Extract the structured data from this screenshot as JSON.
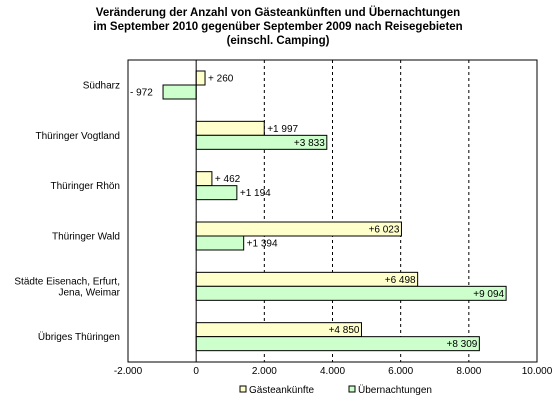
{
  "chart_data": {
    "type": "bar",
    "orientation": "horizontal",
    "title_lines": [
      "Veränderung der Anzahl von Gästeankünften  und Übernachtungen",
      "im September 2010 gegenüber September 2009 nach Reisegebieten",
      "(einschl. Camping)"
    ],
    "categories": [
      [
        "Südharz"
      ],
      [
        "Thüringer Vogtland"
      ],
      [
        "Thüringer Rhön"
      ],
      [
        "Thüringer Wald"
      ],
      [
        "Städte Eisenach, Erfurt,",
        "Jena, Weimar"
      ],
      [
        "Übriges Thüringen"
      ]
    ],
    "series": [
      {
        "name": "Gästeankünfte",
        "color": "#FFFFCC",
        "values": [
          260,
          1997,
          462,
          6023,
          6498,
          4850
        ],
        "labels": [
          "+ 260",
          "+1 997",
          "+ 462",
          "+6 023",
          "+6 498",
          "+4 850"
        ]
      },
      {
        "name": "Übernachtungen",
        "color": "#CCFFCC",
        "values": [
          -972,
          3833,
          1194,
          1394,
          9094,
          8309
        ],
        "labels": [
          "- 972",
          "+3 833",
          "+1 194",
          "+1 394",
          "+9 094",
          "+8 309"
        ]
      }
    ],
    "x_ticks": [
      -2000,
      0,
      2000,
      4000,
      6000,
      8000,
      10000
    ],
    "x_tick_labels": [
      "-2.000",
      "0",
      "2.000",
      "4.000",
      "6.000",
      "8.000",
      "10.000"
    ],
    "xlim": [
      -2000,
      10000
    ],
    "grid": "vertical dashed",
    "legend": "bottom"
  }
}
